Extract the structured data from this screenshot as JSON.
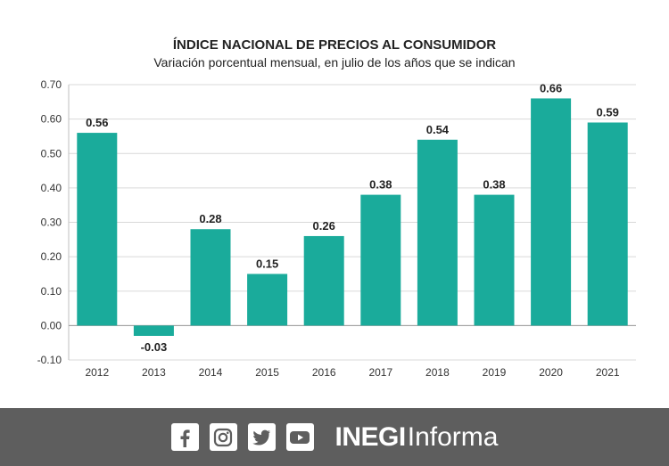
{
  "chart_data": {
    "type": "bar",
    "title": "ÍNDICE NACIONAL DE PRECIOS AL CONSUMIDOR",
    "subtitle": "Variación porcentual mensual, en julio de los años que se indican",
    "categories": [
      "2012",
      "2013",
      "2014",
      "2015",
      "2016",
      "2017",
      "2018",
      "2019",
      "2020",
      "2021"
    ],
    "values": [
      0.56,
      -0.03,
      0.28,
      0.15,
      0.26,
      0.38,
      0.54,
      0.38,
      0.66,
      0.59
    ],
    "value_labels": [
      "0.56",
      "-0.03",
      "0.28",
      "0.15",
      "0.26",
      "0.38",
      "0.54",
      "0.38",
      "0.66",
      "0.59"
    ],
    "yticks": [
      "-0.10",
      "0.00",
      "0.10",
      "0.20",
      "0.30",
      "0.40",
      "0.50",
      "0.60",
      "0.70"
    ],
    "ylim": [
      -0.1,
      0.7
    ],
    "xlabel": "",
    "ylabel": "",
    "grid": true,
    "bar_color": "#1aab9b"
  },
  "footer": {
    "icons": [
      "facebook-icon",
      "instagram-icon",
      "twitter-icon",
      "youtube-icon"
    ],
    "brand_bold": "INEGI",
    "brand_light": "Informa",
    "background": "#5e5e5e"
  }
}
